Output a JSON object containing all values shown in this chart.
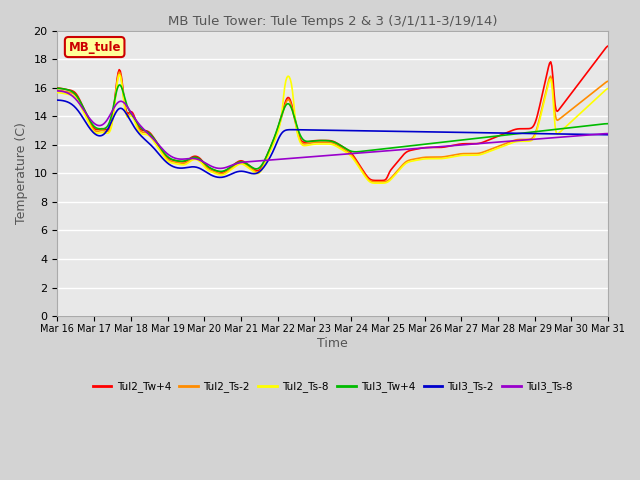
{
  "title": "MB Tule Tower: Tule Temps 2 & 3 (3/1/11-3/19/14)",
  "xlabel": "Time",
  "ylabel": "Temperature (C)",
  "ylim": [
    0,
    20
  ],
  "yticks": [
    0,
    2,
    4,
    6,
    8,
    10,
    12,
    14,
    16,
    18,
    20
  ],
  "xtick_labels": [
    "Mar 16",
    "Mar 17",
    "Mar 18",
    "Mar 19",
    "Mar 20",
    "Mar 21",
    "Mar 22",
    "Mar 23",
    "Mar 24",
    "Mar 25",
    "Mar 26",
    "Mar 27",
    "Mar 28",
    "Mar 29",
    "Mar 30",
    "Mar 31"
  ],
  "background_color": "#d3d3d3",
  "plot_bg_color": "#e8e8e8",
  "grid_color": "#ffffff",
  "series": {
    "Tul2_Tw+4": {
      "color": "#ff0000",
      "lw": 1.2
    },
    "Tul2_Ts-2": {
      "color": "#ff8c00",
      "lw": 1.2
    },
    "Tul2_Ts-8": {
      "color": "#ffff00",
      "lw": 1.2
    },
    "Tul3_Tw+4": {
      "color": "#00bb00",
      "lw": 1.2
    },
    "Tul3_Ts-2": {
      "color": "#0000cc",
      "lw": 1.2
    },
    "Tul3_Ts-8": {
      "color": "#9900cc",
      "lw": 1.2
    }
  },
  "annotation_box": {
    "text": "MB_tule",
    "facecolor": "#ffff99",
    "edgecolor": "#cc0000",
    "textcolor": "#cc0000"
  }
}
